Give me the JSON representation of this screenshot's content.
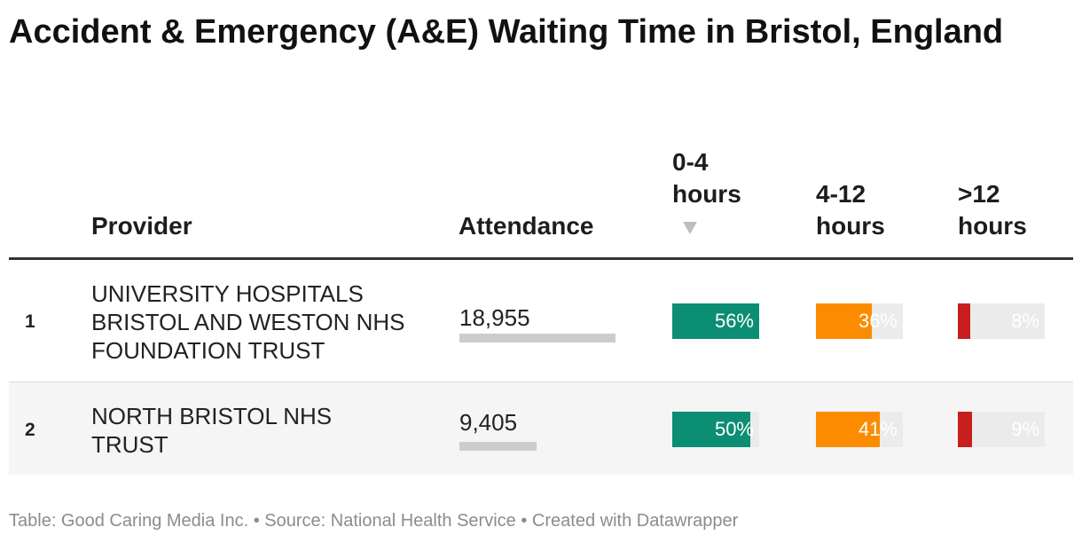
{
  "title": "Accident & Emergency (A&E) Waiting Time in Bristol, England",
  "columns": {
    "provider": "Provider",
    "attendance": "Attendance",
    "h0_4_line1": "0-4",
    "h0_4_line2": "hours",
    "h4_12_line1": "4-12",
    "h4_12_line2": "hours",
    "h12_line1": ">12",
    "h12_line2": "hours"
  },
  "colors": {
    "h0_4": "#0b8e73",
    "h4_12": "#fb8c00",
    "h12": "#c81e1e",
    "attendance_bar": "#cccccc"
  },
  "chart_data": {
    "type": "table",
    "title": "Accident & Emergency (A&E) Waiting Time in Bristol, England",
    "sorted_by": "0-4 hours",
    "rows": [
      {
        "rank": "1",
        "provider": "UNIVERSITY HOSPITALS BRISTOL AND WESTON NHS FOUNDATION TRUST",
        "attendance": 18955,
        "attendance_label": "18,955",
        "h0_4": 56,
        "h0_4_label": "56%",
        "h4_12": 36,
        "h4_12_label": "36%",
        "h12": 8,
        "h12_label": "8%"
      },
      {
        "rank": "2",
        "provider": "NORTH BRISTOL NHS TRUST",
        "attendance": 9405,
        "attendance_label": "9,405",
        "h0_4": 50,
        "h0_4_label": "50%",
        "h4_12": 41,
        "h4_12_label": "41%",
        "h12": 9,
        "h12_label": "9%"
      }
    ]
  },
  "footer": {
    "table": "Table: Good Caring Media Inc.",
    "source": "Source: National Health Service",
    "created": "Created with Datawrapper",
    "sep": "•"
  }
}
